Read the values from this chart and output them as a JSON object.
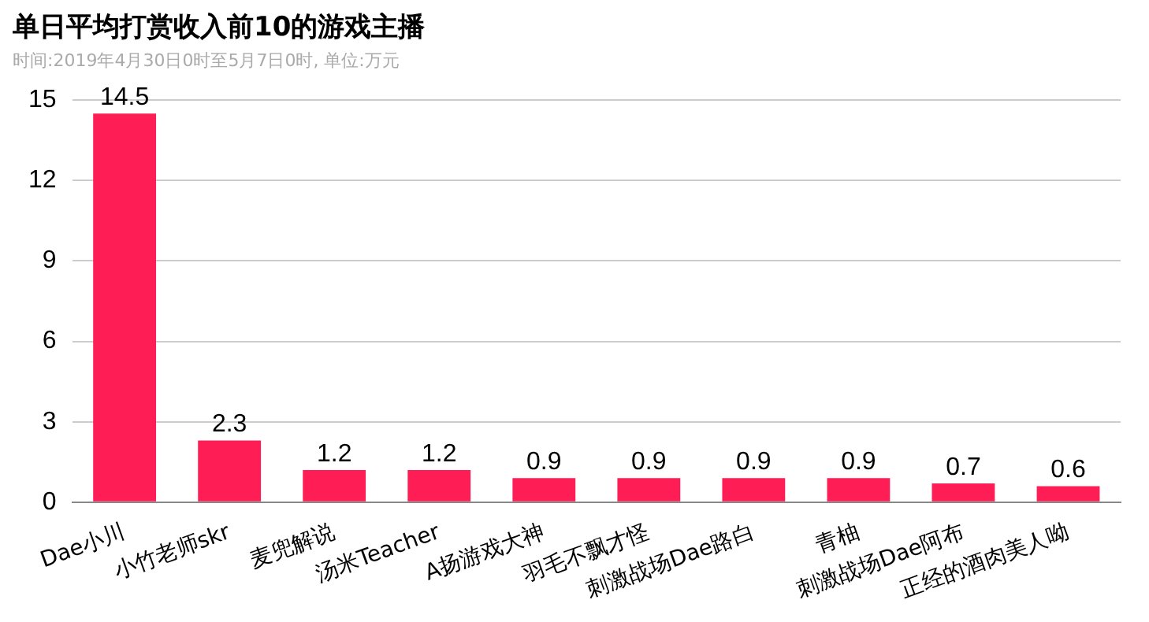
{
  "chart_data": {
    "type": "bar",
    "title": "单日平均打赏收入前10的游戏主播",
    "subtitle": "时间:2019年4月30日0时至5月7日0时, 单位:万元",
    "categories": [
      "Dae小川",
      "小竹老师skr",
      "麦兜解说",
      "汤米Teacher",
      "A扬游戏大神",
      "羽毛不飘才怪",
      "刺激战场Dae路白",
      "青柚",
      "刺激战场Dae阿布",
      "正经的酒肉美人呦"
    ],
    "values": [
      14.5,
      2.3,
      1.2,
      1.2,
      0.9,
      0.9,
      0.9,
      0.9,
      0.7,
      0.6
    ],
    "color": "#fe1d55",
    "ylim": [
      0,
      15
    ],
    "yticks": [
      0,
      3,
      6,
      9,
      12,
      15
    ],
    "grid": "y",
    "data_labels": true,
    "legend": false
  }
}
